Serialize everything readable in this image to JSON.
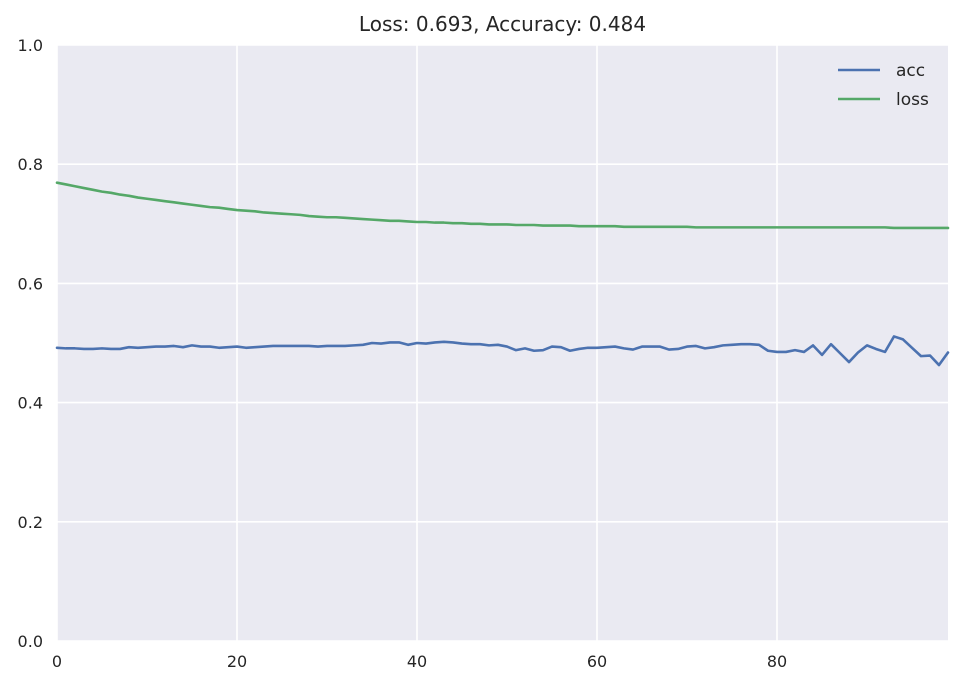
{
  "chart_data": {
    "type": "line",
    "title": "Loss: 0.693, Accuracy: 0.484",
    "xlabel": "",
    "ylabel": "",
    "xlim": [
      0,
      99
    ],
    "ylim": [
      0,
      1
    ],
    "x_ticks": [
      "0",
      "20",
      "40",
      "60",
      "80"
    ],
    "y_ticks": [
      "0.0",
      "0.2",
      "0.4",
      "0.6",
      "0.8",
      "1.0"
    ],
    "grid": true,
    "legend_position": "top-right",
    "background_color": "#EAEAF2",
    "grid_color": "#FFFFFF",
    "series": [
      {
        "name": "acc",
        "color": "#4C72B0",
        "values": [
          0.492,
          0.491,
          0.491,
          0.49,
          0.49,
          0.491,
          0.49,
          0.49,
          0.493,
          0.492,
          0.493,
          0.494,
          0.494,
          0.495,
          0.493,
          0.496,
          0.494,
          0.494,
          0.492,
          0.493,
          0.494,
          0.492,
          0.493,
          0.494,
          0.495,
          0.495,
          0.495,
          0.495,
          0.495,
          0.494,
          0.495,
          0.495,
          0.495,
          0.496,
          0.497,
          0.5,
          0.499,
          0.501,
          0.501,
          0.497,
          0.5,
          0.499,
          0.501,
          0.502,
          0.501,
          0.499,
          0.498,
          0.498,
          0.496,
          0.497,
          0.494,
          0.488,
          0.491,
          0.487,
          0.488,
          0.494,
          0.493,
          0.487,
          0.49,
          0.492,
          0.492,
          0.493,
          0.494,
          0.491,
          0.489,
          0.494,
          0.494,
          0.494,
          0.489,
          0.49,
          0.494,
          0.495,
          0.491,
          0.493,
          0.496,
          0.497,
          0.498,
          0.498,
          0.497,
          0.487,
          0.485,
          0.485,
          0.488,
          0.485,
          0.496,
          0.48,
          0.498,
          0.483,
          0.468,
          0.484,
          0.496,
          0.49,
          0.485,
          0.511,
          0.506,
          0.492,
          0.478,
          0.479,
          0.463,
          0.484
        ]
      },
      {
        "name": "loss",
        "color": "#55A868",
        "values": [
          0.769,
          0.766,
          0.763,
          0.76,
          0.757,
          0.754,
          0.752,
          0.749,
          0.747,
          0.744,
          0.742,
          0.74,
          0.738,
          0.736,
          0.734,
          0.732,
          0.73,
          0.728,
          0.727,
          0.725,
          0.723,
          0.722,
          0.721,
          0.719,
          0.718,
          0.717,
          0.716,
          0.715,
          0.713,
          0.712,
          0.711,
          0.711,
          0.71,
          0.709,
          0.708,
          0.707,
          0.706,
          0.705,
          0.705,
          0.704,
          0.703,
          0.703,
          0.702,
          0.702,
          0.701,
          0.701,
          0.7,
          0.7,
          0.699,
          0.699,
          0.699,
          0.698,
          0.698,
          0.698,
          0.697,
          0.697,
          0.697,
          0.697,
          0.696,
          0.696,
          0.696,
          0.696,
          0.696,
          0.695,
          0.695,
          0.695,
          0.695,
          0.695,
          0.695,
          0.695,
          0.695,
          0.694,
          0.694,
          0.694,
          0.694,
          0.694,
          0.694,
          0.694,
          0.694,
          0.694,
          0.694,
          0.694,
          0.694,
          0.694,
          0.694,
          0.694,
          0.694,
          0.694,
          0.694,
          0.694,
          0.694,
          0.694,
          0.694,
          0.693,
          0.693,
          0.693,
          0.693,
          0.693,
          0.693,
          0.693
        ]
      }
    ]
  }
}
